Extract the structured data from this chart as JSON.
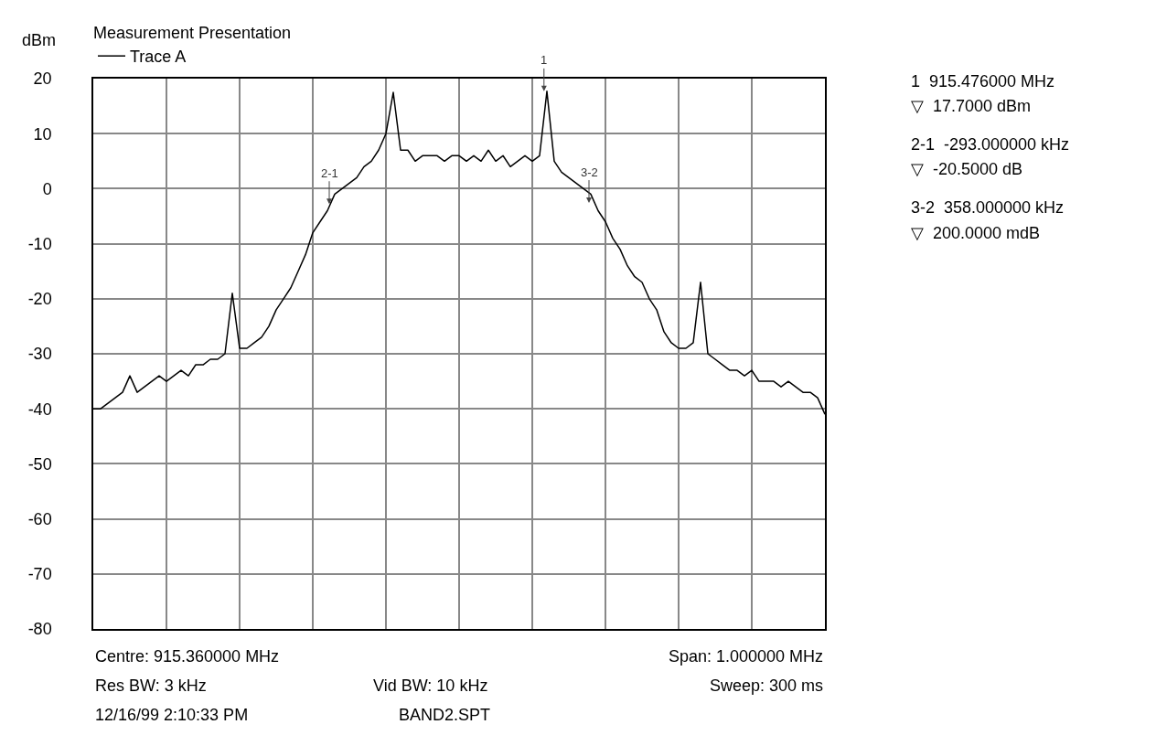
{
  "chart_data": {
    "type": "line",
    "title": "Measurement Presentation",
    "ylabel": "dBm",
    "legend": "top left",
    "grid": true,
    "marker": "none",
    "tick_labels": "y",
    "categories": [
      null,
      null,
      null,
      null,
      null,
      null,
      null,
      null,
      null,
      null,
      null,
      null,
      null,
      null,
      null,
      null,
      null,
      null,
      null,
      null,
      null,
      null,
      null,
      null,
      null,
      null,
      null,
      null,
      null,
      null,
      null,
      null,
      null,
      null,
      null,
      null,
      null,
      null,
      null,
      null,
      null,
      null,
      null,
      null,
      null,
      null,
      null,
      null,
      null,
      null,
      null,
      null,
      null,
      null,
      null,
      null,
      null,
      null,
      null,
      null,
      null,
      null,
      null,
      null,
      null,
      null,
      null,
      null,
      null,
      null,
      null,
      null,
      null,
      null,
      null,
      null,
      null,
      null,
      null,
      null,
      null,
      null,
      null,
      null,
      null,
      null,
      null,
      null,
      null,
      null,
      null,
      null,
      null,
      null,
      null,
      null,
      null,
      null,
      null,
      null,
      null
    ],
    "ylim": [
      -80,
      20
    ],
    "yticks": [
      -80,
      -70,
      -60,
      -50,
      -40,
      -30,
      -20,
      -10,
      0,
      10,
      20
    ],
    "series": [
      {
        "name": "Trace A",
        "color": "#000000",
        "values": [
          -40,
          -40,
          -39,
          -38,
          -37,
          -34,
          -37,
          -36,
          -35,
          -34,
          -35,
          -34,
          -33,
          -34,
          -32,
          -32,
          -31,
          -31,
          -30,
          -19,
          -29,
          -29,
          -28,
          -27,
          -25,
          -22,
          -20,
          -18,
          -15,
          -12,
          -8,
          -6,
          -4,
          -1,
          0,
          1,
          2,
          4,
          5,
          7,
          10,
          17.5,
          7,
          7,
          5,
          6,
          6,
          6,
          5,
          6,
          6,
          5,
          6,
          5,
          7,
          5,
          6,
          4,
          5,
          6,
          5,
          6,
          17.7,
          5,
          3,
          2,
          1,
          0,
          -1,
          -4,
          -6,
          -9,
          -11,
          -14,
          -16,
          -17,
          -20,
          -22,
          -26,
          -28,
          -29,
          -29,
          -28,
          -17,
          -30,
          -31,
          -32,
          -33,
          -33,
          -34,
          -33,
          -35,
          -35,
          -35,
          -36,
          -35,
          -36,
          -37,
          -37,
          -38,
          -41
        ]
      }
    ],
    "annotations": [
      "1",
      "2-1",
      "3-2",
      "Centre: 915.360000 MHz",
      "Span: 1.000000 MHz",
      "Res BW: 3 kHz",
      "Vid BW: 10 kHz",
      "Sweep: 300 ms",
      "12/16/99 2:10:33 PM",
      "BAND2.SPT",
      "1  915.476000 MHz",
      "▽  17.7000 dBm",
      "2-1  -293.000000 kHz",
      "▽  -20.5000 dB",
      "3-2  358.000000 kHz",
      "▽  200.0000 mdB"
    ]
  }
}
